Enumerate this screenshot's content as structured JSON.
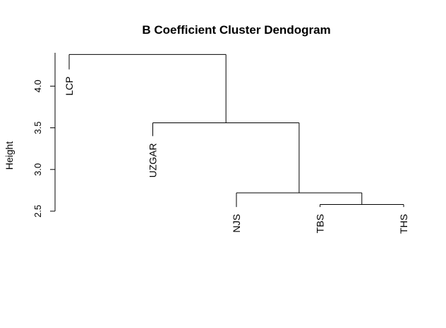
{
  "chart_data": {
    "type": "dendrogram",
    "title": "B Coefficient Cluster Dendogram",
    "ylabel": "Height",
    "xlabel": "",
    "ylim": [
      2.5,
      4.4
    ],
    "yticks": [
      2.5,
      3.0,
      3.5,
      4.0
    ],
    "ytick_labels": [
      "2.5",
      "3.0",
      "3.5",
      "4.0"
    ],
    "leaves": [
      "LCP",
      "UZGAR",
      "NJS",
      "TBS",
      "THS"
    ],
    "leaf_heights": [
      4.2,
      3.4,
      2.55,
      2.55,
      2.55
    ],
    "merges": [
      {
        "left": "TBS",
        "right": "THS",
        "height": 2.58
      },
      {
        "left": "NJS",
        "right": "TBS+THS",
        "height": 2.72
      },
      {
        "left": "UZGAR",
        "right": "NJS+TBS+THS",
        "height": 3.56
      },
      {
        "left": "LCP",
        "right": "UZGAR+NJS+TBS+THS",
        "height": 4.38
      }
    ]
  }
}
